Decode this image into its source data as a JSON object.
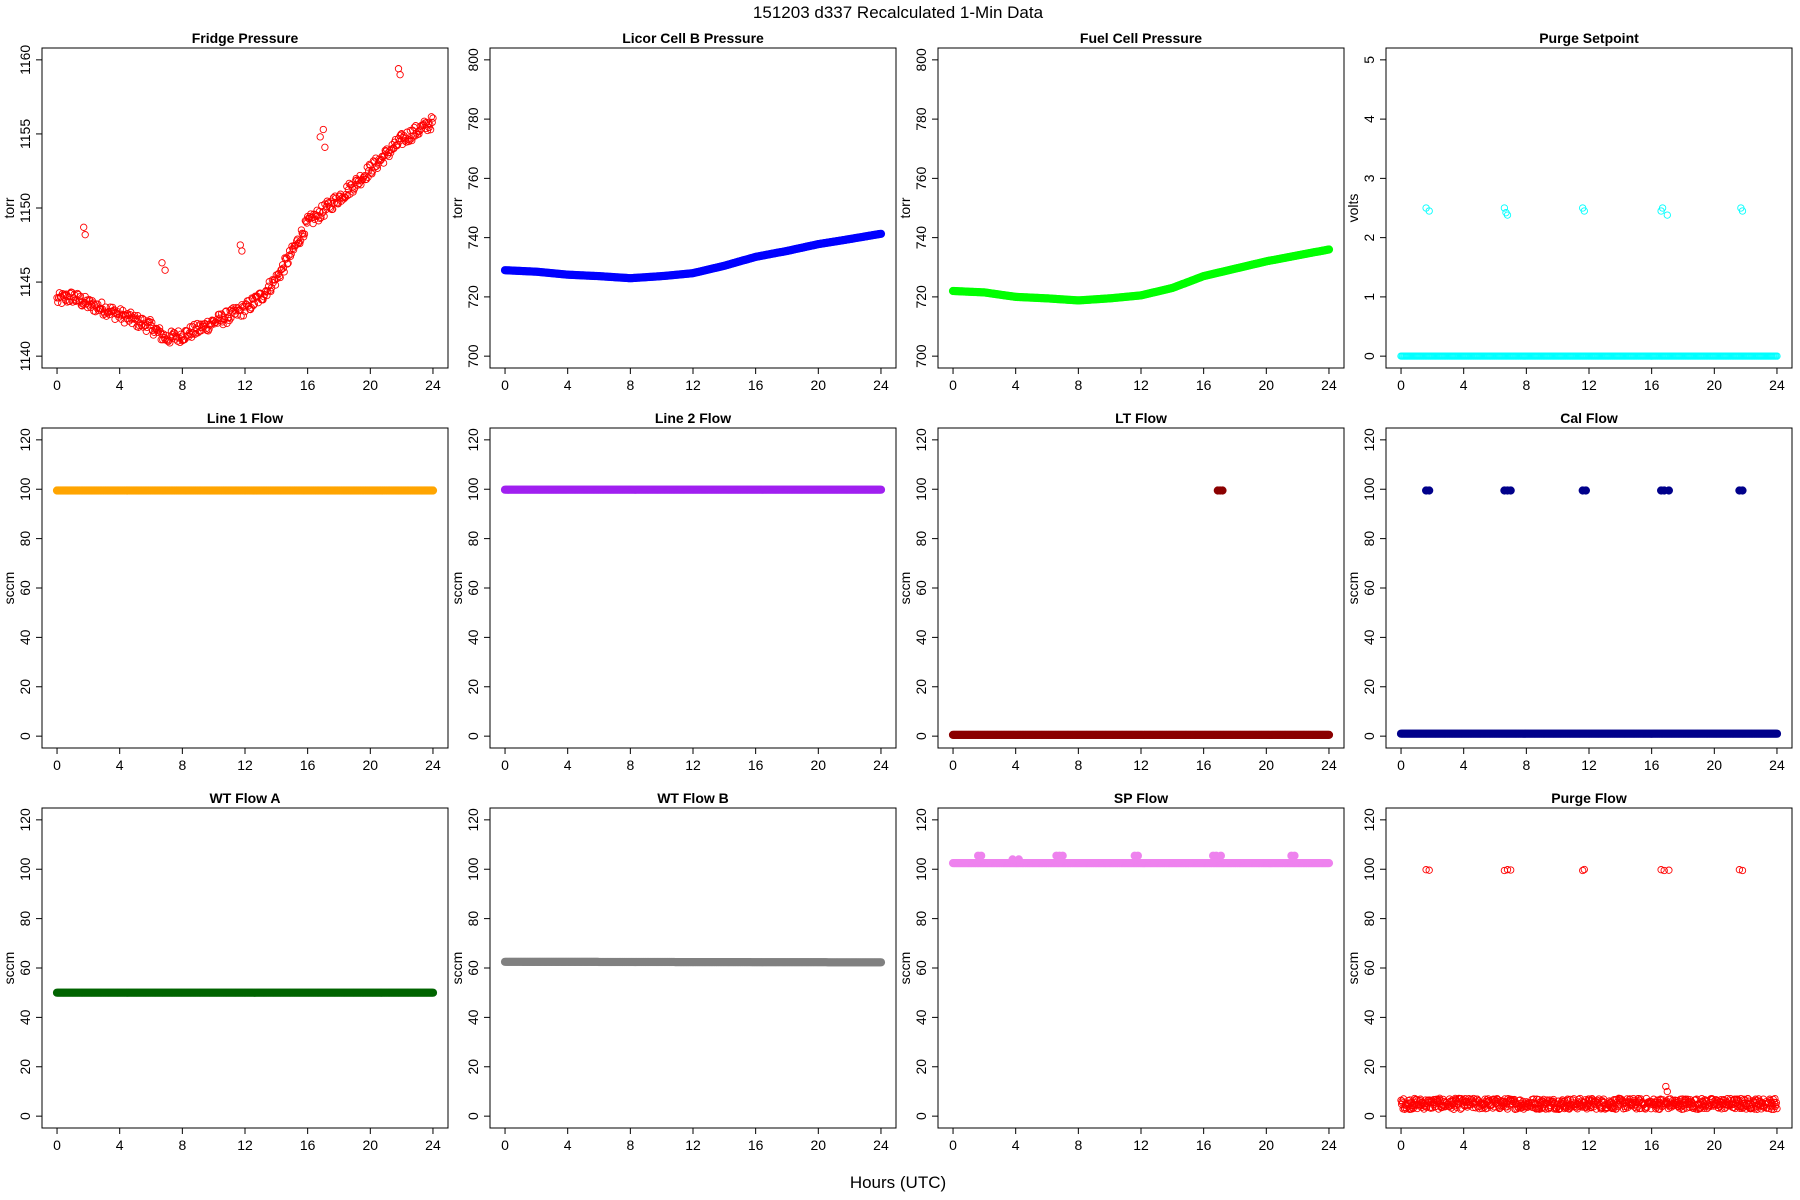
{
  "figure": {
    "title": "151203   d337   Recalculated 1-Min Data",
    "xlabel": "Hours (UTC)"
  },
  "chart_data": [
    {
      "type": "scatter",
      "title": "Fridge Pressure",
      "ylabel": "torr",
      "xlim": [
        0,
        24
      ],
      "ylim": [
        1140,
        1160
      ],
      "xticks": [
        0,
        4,
        8,
        12,
        16,
        20,
        24
      ],
      "yticks": [
        1140,
        1145,
        1150,
        1155,
        1160
      ],
      "color": "#ff0000",
      "marker": "open",
      "series": [
        {
          "x": [
            0,
            1,
            2,
            3,
            4,
            5,
            6,
            6.7,
            7,
            8,
            9,
            10,
            11,
            12,
            13,
            14,
            15,
            16,
            17,
            18,
            19,
            20,
            21,
            22,
            23,
            24
          ],
          "y": [
            1143.8,
            1144,
            1143.5,
            1143.2,
            1142.8,
            1142.4,
            1142,
            1141.4,
            1141.2,
            1141.4,
            1141.8,
            1142.3,
            1142.7,
            1143.2,
            1144,
            1145.2,
            1147,
            1149,
            1149.8,
            1150.7,
            1151.6,
            1152.6,
            1153.6,
            1154.6,
            1155.2,
            1155.8
          ]
        },
        {
          "x": [
            1.7,
            1.8,
            6.7,
            6.9,
            11.7,
            11.8,
            16.8,
            17,
            17.1,
            21.8,
            21.9
          ],
          "y": [
            1148.7,
            1148.2,
            1146.3,
            1145.8,
            1147.5,
            1147.1,
            1154.8,
            1155.3,
            1154.1,
            1159.4,
            1159
          ]
        }
      ]
    },
    {
      "type": "scatter",
      "title": "Licor Cell B Pressure",
      "ylabel": "torr",
      "xlim": [
        0,
        24
      ],
      "ylim": [
        700,
        800
      ],
      "xticks": [
        0,
        4,
        8,
        12,
        16,
        20,
        24
      ],
      "yticks": [
        700,
        720,
        740,
        760,
        780,
        800
      ],
      "color": "#0000ff",
      "marker": "filled",
      "series": [
        {
          "x": [
            0,
            2,
            4,
            6,
            8,
            10,
            12,
            14,
            16,
            18,
            20,
            22,
            24
          ],
          "y": [
            729,
            728.5,
            727.5,
            727,
            726.3,
            727,
            728,
            730.5,
            733.5,
            735.5,
            737.8,
            739.5,
            741.3
          ]
        }
      ]
    },
    {
      "type": "scatter",
      "title": "Fuel Cell Pressure",
      "ylabel": "torr",
      "xlim": [
        0,
        24
      ],
      "ylim": [
        700,
        800
      ],
      "xticks": [
        0,
        4,
        8,
        12,
        16,
        20,
        24
      ],
      "yticks": [
        700,
        720,
        740,
        760,
        780,
        800
      ],
      "color": "#00ff00",
      "marker": "filled",
      "series": [
        {
          "x": [
            0,
            2,
            4,
            6,
            8,
            10,
            12,
            14,
            16,
            18,
            20,
            22,
            24
          ],
          "y": [
            722,
            721.5,
            720,
            719.5,
            718.8,
            719.5,
            720.5,
            723,
            727,
            729.5,
            732,
            734,
            736
          ]
        }
      ]
    },
    {
      "type": "scatter",
      "title": "Purge Setpoint",
      "ylabel": "volts",
      "xlim": [
        0,
        24
      ],
      "ylim": [
        0,
        5
      ],
      "xticks": [
        0,
        4,
        8,
        12,
        16,
        20,
        24
      ],
      "yticks": [
        0,
        1,
        2,
        3,
        4,
        5
      ],
      "color": "#00ffff",
      "marker": "open",
      "series": [
        {
          "x": [
            0,
            24
          ],
          "y": [
            0,
            0
          ],
          "kind": "band"
        },
        {
          "x": [
            1.6,
            1.8,
            6.6,
            6.7,
            6.8,
            11.6,
            11.7,
            16.6,
            16.7,
            17,
            21.7,
            21.8
          ],
          "y": [
            2.5,
            2.45,
            2.5,
            2.42,
            2.38,
            2.5,
            2.45,
            2.45,
            2.5,
            2.38,
            2.5,
            2.45
          ]
        }
      ]
    },
    {
      "type": "scatter",
      "title": "Line 1 Flow",
      "ylabel": "sccm",
      "xlim": [
        0,
        24
      ],
      "ylim": [
        0,
        120
      ],
      "xticks": [
        0,
        4,
        8,
        12,
        16,
        20,
        24
      ],
      "yticks": [
        0,
        20,
        40,
        60,
        80,
        100,
        120
      ],
      "color": "#ffa500",
      "marker": "filled",
      "series": [
        {
          "x": [
            0,
            24
          ],
          "y": [
            99.5,
            99.5
          ],
          "kind": "band"
        }
      ]
    },
    {
      "type": "scatter",
      "title": "Line 2 Flow",
      "ylabel": "sccm",
      "xlim": [
        0,
        24
      ],
      "ylim": [
        0,
        120
      ],
      "xticks": [
        0,
        4,
        8,
        12,
        16,
        20,
        24
      ],
      "yticks": [
        0,
        20,
        40,
        60,
        80,
        100,
        120
      ],
      "color": "#a020f0",
      "marker": "filled",
      "series": [
        {
          "x": [
            0,
            24
          ],
          "y": [
            99.8,
            99.8
          ],
          "kind": "band"
        }
      ]
    },
    {
      "type": "scatter",
      "title": "LT Flow",
      "ylabel": "sccm",
      "xlim": [
        0,
        24
      ],
      "ylim": [
        0,
        120
      ],
      "xticks": [
        0,
        4,
        8,
        12,
        16,
        20,
        24
      ],
      "yticks": [
        0,
        20,
        40,
        60,
        80,
        100,
        120
      ],
      "color": "#8b0000",
      "marker": "filled",
      "series": [
        {
          "x": [
            0,
            24
          ],
          "y": [
            0.5,
            0.5
          ],
          "kind": "band"
        },
        {
          "x": [
            16.9,
            17.05,
            17.2
          ],
          "y": [
            99.5,
            99.5,
            99.5
          ]
        }
      ]
    },
    {
      "type": "scatter",
      "title": "Cal Flow",
      "ylabel": "sccm",
      "xlim": [
        0,
        24
      ],
      "ylim": [
        0,
        120
      ],
      "xticks": [
        0,
        4,
        8,
        12,
        16,
        20,
        24
      ],
      "yticks": [
        0,
        20,
        40,
        60,
        80,
        100,
        120
      ],
      "color": "#00008b",
      "marker": "filled",
      "series": [
        {
          "x": [
            0,
            24
          ],
          "y": [
            1,
            1
          ],
          "kind": "band"
        },
        {
          "x": [
            1.6,
            1.8,
            6.6,
            6.8,
            7,
            11.6,
            11.8,
            16.6,
            16.8,
            17.1,
            21.6,
            21.8
          ],
          "y": [
            99.5,
            99.5,
            99.5,
            99.5,
            99.5,
            99.5,
            99.5,
            99.5,
            99.5,
            99.5,
            99.5,
            99.5
          ]
        }
      ]
    },
    {
      "type": "scatter",
      "title": "WT Flow A",
      "ylabel": "sccm",
      "xlim": [
        0,
        24
      ],
      "ylim": [
        0,
        120
      ],
      "xticks": [
        0,
        4,
        8,
        12,
        16,
        20,
        24
      ],
      "yticks": [
        0,
        20,
        40,
        60,
        80,
        100,
        120
      ],
      "color": "#006400",
      "marker": "filled",
      "series": [
        {
          "x": [
            0,
            24
          ],
          "y": [
            50,
            50
          ],
          "kind": "band"
        }
      ]
    },
    {
      "type": "scatter",
      "title": "WT Flow B",
      "ylabel": "sccm",
      "xlim": [
        0,
        24
      ],
      "ylim": [
        0,
        120
      ],
      "xticks": [
        0,
        4,
        8,
        12,
        16,
        20,
        24
      ],
      "yticks": [
        0,
        20,
        40,
        60,
        80,
        100,
        120
      ],
      "color": "#808080",
      "marker": "filled",
      "series": [
        {
          "x": [
            0,
            24
          ],
          "y": [
            62.5,
            62.3
          ],
          "kind": "band"
        }
      ]
    },
    {
      "type": "scatter",
      "title": "SP Flow",
      "ylabel": "sccm",
      "xlim": [
        0,
        24
      ],
      "ylim": [
        0,
        120
      ],
      "xticks": [
        0,
        4,
        8,
        12,
        16,
        20,
        24
      ],
      "yticks": [
        0,
        20,
        40,
        60,
        80,
        100,
        120
      ],
      "color": "#ee82ee",
      "marker": "filled",
      "series": [
        {
          "x": [
            0,
            24
          ],
          "y": [
            102.5,
            102.5
          ],
          "kind": "band"
        },
        {
          "x": [
            1.6,
            1.8,
            3.8,
            4.2,
            6.6,
            6.8,
            7,
            11.6,
            11.8,
            16.6,
            16.8,
            17.1,
            21.6,
            21.8
          ],
          "y": [
            105.5,
            105.5,
            104,
            104,
            105.5,
            105.5,
            105.5,
            105.5,
            105.5,
            105.5,
            105.5,
            105.5,
            105.5,
            105.5
          ]
        }
      ]
    },
    {
      "type": "scatter",
      "title": "Purge Flow",
      "ylabel": "sccm",
      "xlim": [
        0,
        24
      ],
      "ylim": [
        0,
        120
      ],
      "xticks": [
        0,
        4,
        8,
        12,
        16,
        20,
        24
      ],
      "yticks": [
        0,
        20,
        40,
        60,
        80,
        100,
        120
      ],
      "color": "#ff0000",
      "marker": "open",
      "series": [
        {
          "x": [
            0,
            24
          ],
          "y": [
            5,
            5
          ],
          "kind": "noise"
        },
        {
          "x": [
            1.6,
            1.8,
            6.6,
            6.8,
            7,
            11.6,
            11.7,
            16.6,
            16.8,
            17.1,
            21.6,
            21.8
          ],
          "y": [
            99.8,
            99.6,
            99.5,
            99.8,
            99.7,
            99.5,
            99.9,
            99.8,
            99.5,
            99.6,
            99.8,
            99.5
          ]
        },
        {
          "x": [
            16.9,
            17.0
          ],
          "y": [
            12,
            10
          ]
        }
      ]
    }
  ]
}
